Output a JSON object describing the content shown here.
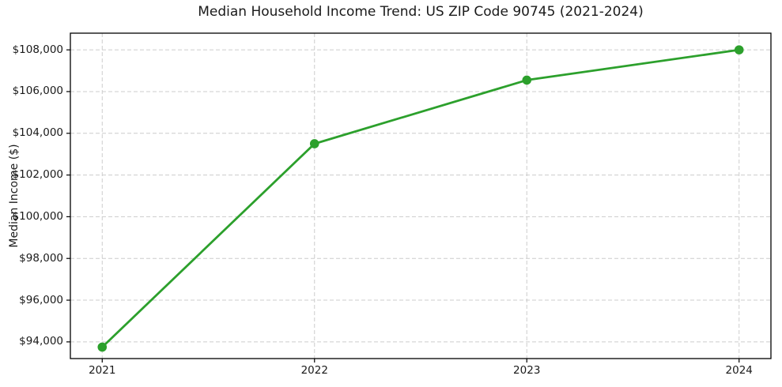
{
  "chart_data": {
    "type": "line",
    "title": "Median Household Income Trend: US ZIP Code 90745 (2021-2024)",
    "xlabel": "",
    "ylabel": "Median Income ($)",
    "x": [
      2021,
      2022,
      2023,
      2024
    ],
    "values": [
      93750,
      103500,
      106550,
      108000
    ],
    "x_tick_labels": [
      "2021",
      "2022",
      "2023",
      "2024"
    ],
    "y_tick_values": [
      94000,
      96000,
      98000,
      100000,
      102000,
      104000,
      106000,
      108000
    ],
    "y_tick_labels": [
      "$94,000",
      "$96,000",
      "$98,000",
      "$100,000",
      "$102,000",
      "$104,000",
      "$106,000",
      "$108,000"
    ],
    "xlim": [
      2020.85,
      2024.15
    ],
    "ylim": [
      93200,
      108800
    ],
    "grid": true,
    "grid_style": "dashed",
    "legend": "none",
    "colors": {
      "line": "#2ca02c",
      "marker": "#2ca02c",
      "grid": "#cccccc",
      "spine": "#000000",
      "text": "#1a1a1a",
      "background": "#ffffff"
    }
  }
}
